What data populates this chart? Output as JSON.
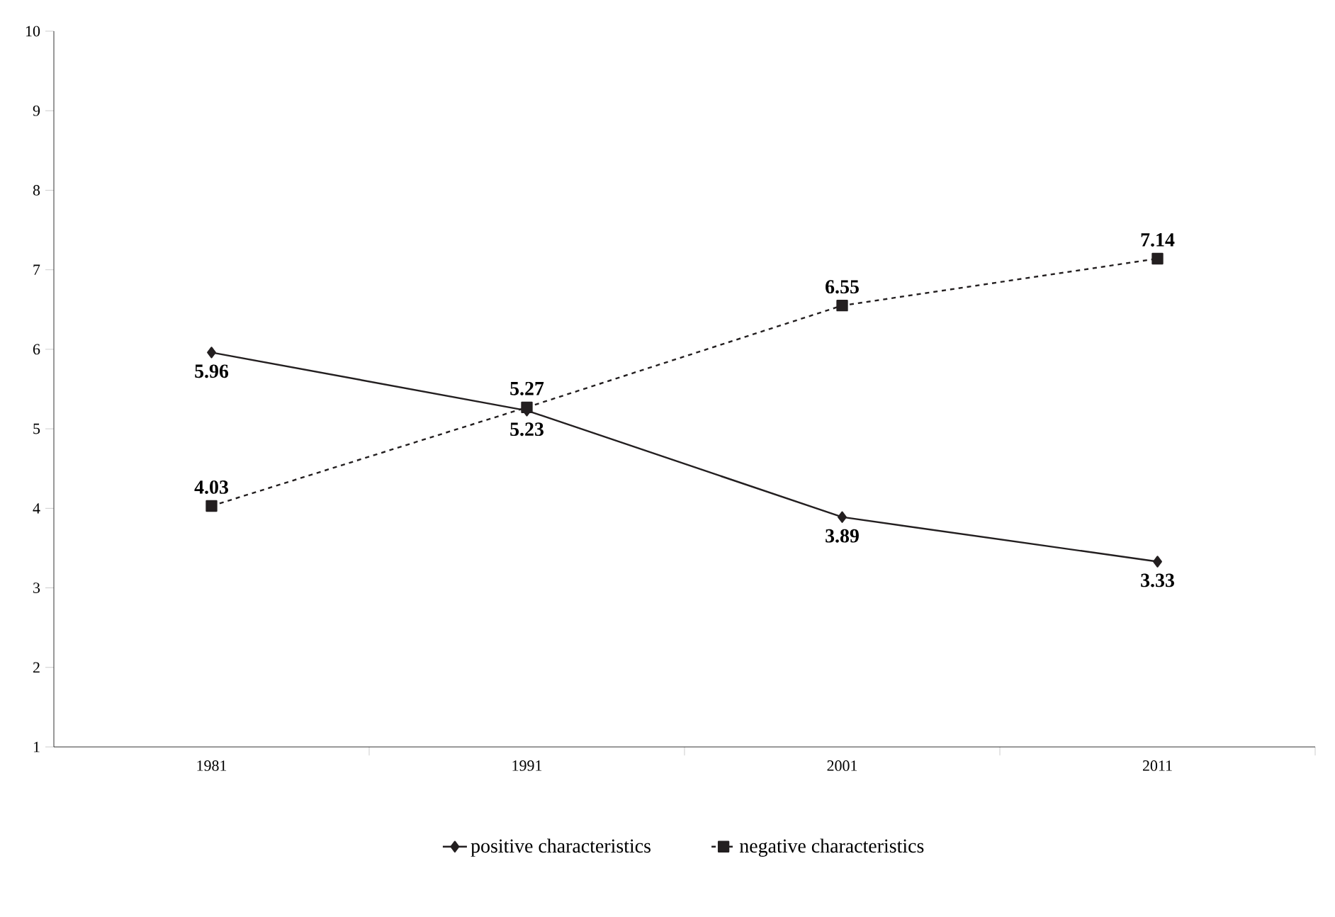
{
  "chart_data": {
    "type": "line",
    "categories": [
      "1981",
      "1991",
      "2001",
      "2011"
    ],
    "ylim": [
      1,
      10
    ],
    "yticks": [
      1,
      2,
      3,
      4,
      5,
      6,
      7,
      8,
      9,
      10
    ],
    "data_labels": true,
    "legend": "bottom",
    "series": [
      {
        "name": "positive characteristics",
        "color": "#231f20",
        "values": [
          5.96,
          5.23,
          3.89,
          3.33
        ],
        "marker": "diamond",
        "line_style": "solid"
      },
      {
        "name": "negative characteristics",
        "color": "#231f20",
        "values": [
          4.03,
          5.27,
          6.55,
          7.14
        ],
        "marker": "square",
        "line_style": "dashed"
      }
    ]
  }
}
